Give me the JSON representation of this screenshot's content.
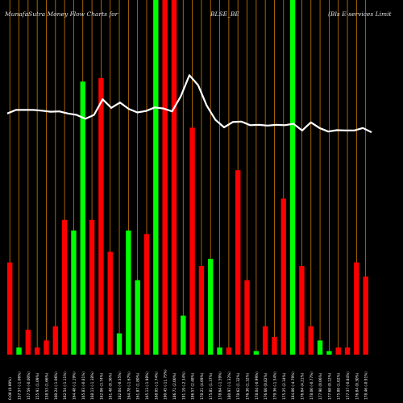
{
  "header": {
    "site": "MunafaSutra  Money Flow  Charts for",
    "symbol": "BLSE_BE",
    "company": "(Bls E-services Limit"
  },
  "colors": {
    "background": "#000000",
    "up_bar": "#00ff00",
    "down_bar": "#ff0000",
    "grid_line": "#cc7a00",
    "price_line": "#ffffff",
    "label_text": "#ffffff"
  },
  "chart_data": {
    "type": "bar",
    "title": "Money Flow",
    "xlabel": "",
    "ylabel": "",
    "ylim": [
      0,
      100
    ],
    "grid": "vertical",
    "bars": [
      {
        "label": "0.00 (0.00%)",
        "dir": "down",
        "value": 26
      },
      {
        "label": "157.57 (-1.06%)",
        "dir": "up",
        "value": 2
      },
      {
        "label": "157.59 (-0.00%)",
        "dir": "down",
        "value": 7
      },
      {
        "label": "155.91 (1.09%)",
        "dir": "down",
        "value": 2
      },
      {
        "label": "158.53 (1.66%)",
        "dir": "down",
        "value": 4
      },
      {
        "label": "160.24 (-1.06%)",
        "dir": "down",
        "value": 8
      },
      {
        "label": "162.54 (-1.11%)",
        "dir": "down",
        "value": 38
      },
      {
        "label": "164.48 (-1.19%)",
        "dir": "up",
        "value": 35
      },
      {
        "label": "165.83 (-0.81%)",
        "dir": "up",
        "value": 77
      },
      {
        "label": "168.13 (-1.38%)",
        "dir": "down",
        "value": 38
      },
      {
        "label": "162.06 (3.74%)",
        "dir": "down",
        "value": 78
      },
      {
        "label": "161.48 (0.36%)",
        "dir": "down",
        "value": 29
      },
      {
        "label": "162.04 (-0.35%)",
        "dir": "up",
        "value": 6
      },
      {
        "label": "164.78 (-1.67%)",
        "dir": "up",
        "value": 35
      },
      {
        "label": "161.87 (1.80%)",
        "dir": "up",
        "value": 21
      },
      {
        "label": "165.13 (-1.98%)",
        "dir": "down",
        "value": 34
      },
      {
        "label": "168.05 (-1.74%)",
        "dir": "up",
        "value": 100
      },
      {
        "label": "190.45 (-11.75%)",
        "dir": "down",
        "value": 100
      },
      {
        "label": "186.71 (2.00%)",
        "dir": "down",
        "value": 100
      },
      {
        "label": "191.19 (-2.34%)",
        "dir": "up",
        "value": 11
      },
      {
        "label": "186.57 (2.48%)",
        "dir": "down",
        "value": 64
      },
      {
        "label": "178.21 (4.69%)",
        "dir": "down",
        "value": 25
      },
      {
        "label": "175.81 (1.37%)",
        "dir": "up",
        "value": 27
      },
      {
        "label": "178.64 (-1.59%)",
        "dir": "up",
        "value": 2
      },
      {
        "label": "180.97 (-1.32%)",
        "dir": "down",
        "value": 2
      },
      {
        "label": "178.62 (1.32%)",
        "dir": "down",
        "value": 52
      },
      {
        "label": "176.30 (1.32%)",
        "dir": "down",
        "value": 21
      },
      {
        "label": "178.04 (-0.99%)",
        "dir": "up",
        "value": 1
      },
      {
        "label": "176.60 (0.82%)",
        "dir": "down",
        "value": 8
      },
      {
        "label": "179.36 (-1.54%)",
        "dir": "down",
        "value": 5
      },
      {
        "label": "175.25 (2.34%)",
        "dir": "down",
        "value": 44
      },
      {
        "label": "184.06 (-4.79%)",
        "dir": "up",
        "value": 100
      },
      {
        "label": "176.64 (4.21%)",
        "dir": "down",
        "value": 25
      },
      {
        "label": "178.00 (-0.77%)",
        "dir": "down",
        "value": 8
      },
      {
        "label": "177.90 (0.06%)",
        "dir": "up",
        "value": 4
      },
      {
        "label": "177.68 (0.12%)",
        "dir": "up",
        "value": 1
      },
      {
        "label": "175.88 (1.02%)",
        "dir": "down",
        "value": 2
      },
      {
        "label": "177.37 (-0.84%)",
        "dir": "down",
        "value": 2
      },
      {
        "label": "176.84 (0.30%)",
        "dir": "down",
        "value": 26
      },
      {
        "label": "178.46 (-0.91%)",
        "dir": "down",
        "value": 22
      }
    ],
    "price_line": [
      68,
      69,
      69,
      69,
      68.8,
      68.5,
      68.6,
      68,
      67.6,
      66.5,
      67.6,
      72,
      69.6,
      71.1,
      69.3,
      68.3,
      68.7,
      69.7,
      69.4,
      68.6,
      72.8,
      78.8,
      76,
      70.2,
      66.2,
      64.1,
      65.6,
      65.7,
      64.7,
      64.8,
      64.6,
      64.8,
      64.7,
      65.1,
      63.2,
      65.5,
      63.9,
      62.9,
      63.3,
      63.2,
      63.2,
      63.9,
      62.7
    ]
  }
}
